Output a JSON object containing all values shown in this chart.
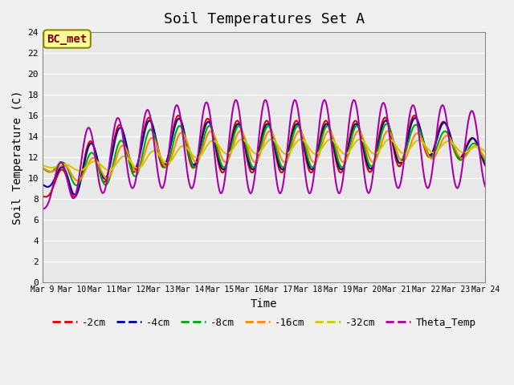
{
  "title": "Soil Temperatures Set A",
  "xlabel": "Time",
  "ylabel": "Soil Temperature (C)",
  "ylim": [
    0,
    24
  ],
  "yticks": [
    0,
    2,
    4,
    6,
    8,
    10,
    12,
    14,
    16,
    18,
    20,
    22,
    24
  ],
  "x_labels": [
    "Mar 9",
    "Mar 10",
    "Mar 11",
    "Mar 12",
    "Mar 13",
    "Mar 14",
    "Mar 15",
    "Mar 16",
    "Mar 17",
    "Mar 18",
    "Mar 19",
    "Mar 20",
    "Mar 21",
    "Mar 22",
    "Mar 23",
    "Mar 24"
  ],
  "colors": {
    "-2cm": "#dd0000",
    "-4cm": "#000099",
    "-8cm": "#00aa00",
    "-16cm": "#ff8800",
    "-32cm": "#cccc00",
    "Theta_Temp": "#aa00aa"
  },
  "legend_label_color": "#800000",
  "annotation_text": "BC_met",
  "annotation_bg": "#ffff99",
  "annotation_border": "#888800",
  "bg_color": "#e8e8e8"
}
